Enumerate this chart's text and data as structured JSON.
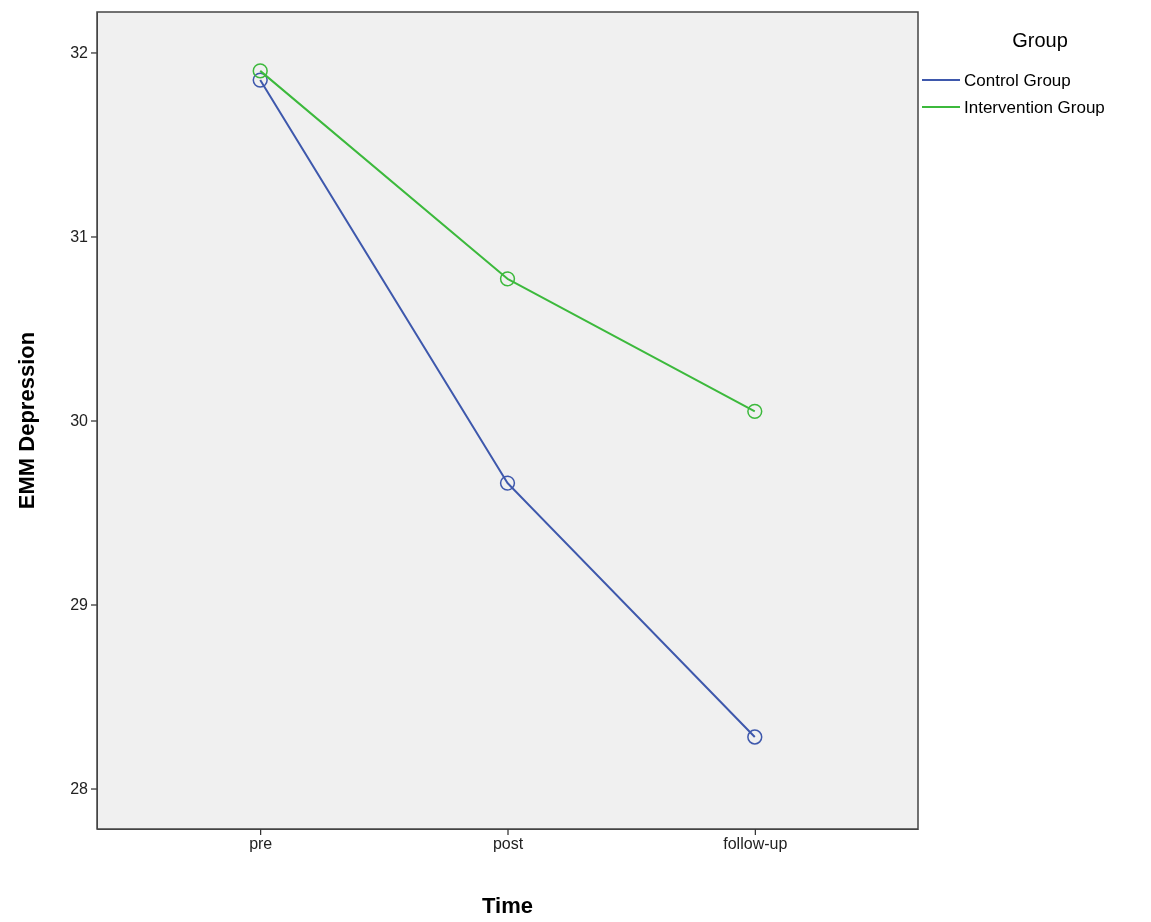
{
  "chart_data": {
    "type": "line",
    "xlabel": "Time",
    "ylabel": "EMM Depression",
    "legend_title": "Group",
    "categories": [
      "pre",
      "post",
      "follow-up"
    ],
    "series": [
      {
        "name": "Control Group",
        "color": "#3e58ac",
        "values": [
          31.85,
          29.66,
          28.28
        ]
      },
      {
        "name": "Intervention Group",
        "color": "#3cb93c",
        "values": [
          31.9,
          30.77,
          30.05
        ]
      }
    ],
    "ylim": [
      27.78,
      32.22
    ],
    "yticks": [
      28,
      29,
      30,
      31,
      32
    ],
    "grid": false,
    "legend": "top right",
    "marker": "circle",
    "line_style": "solid"
  }
}
